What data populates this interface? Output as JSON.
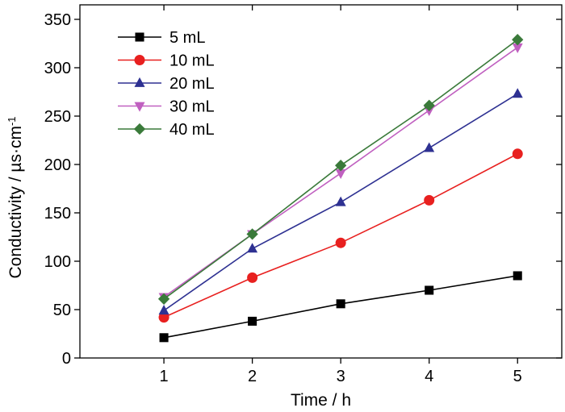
{
  "chart_data": {
    "type": "line",
    "title": "",
    "xlabel": "Time / h",
    "ylabel": "Conductivity / µs·cm",
    "ylabel_superscript": "-1",
    "x": [
      1,
      2,
      3,
      4,
      5
    ],
    "xticks": [
      "1",
      "2",
      "3",
      "4",
      "5"
    ],
    "xlim": [
      0.05,
      5.5
    ],
    "yticks": [
      "0",
      "50",
      "100",
      "150",
      "200",
      "250",
      "300",
      "350"
    ],
    "ylim": [
      0,
      365
    ],
    "grid": false,
    "legend_position": "top-left",
    "series": [
      {
        "name": "5 mL",
        "color": "#000000",
        "marker": "square",
        "values": [
          21,
          38,
          56,
          70,
          85
        ]
      },
      {
        "name": "10 mL",
        "color": "#e8201f",
        "marker": "circle",
        "values": [
          42,
          83,
          119,
          163,
          211
        ]
      },
      {
        "name": "20 mL",
        "color": "#2e3192",
        "marker": "triangle-up",
        "values": [
          49,
          113,
          161,
          217,
          273
        ]
      },
      {
        "name": "30 mL",
        "color": "#c060c0",
        "marker": "triangle-down",
        "values": [
          63,
          128,
          191,
          256,
          321
        ]
      },
      {
        "name": "40 mL",
        "color": "#3a7a3a",
        "marker": "diamond",
        "values": [
          61,
          128,
          199,
          261,
          329
        ]
      }
    ]
  }
}
